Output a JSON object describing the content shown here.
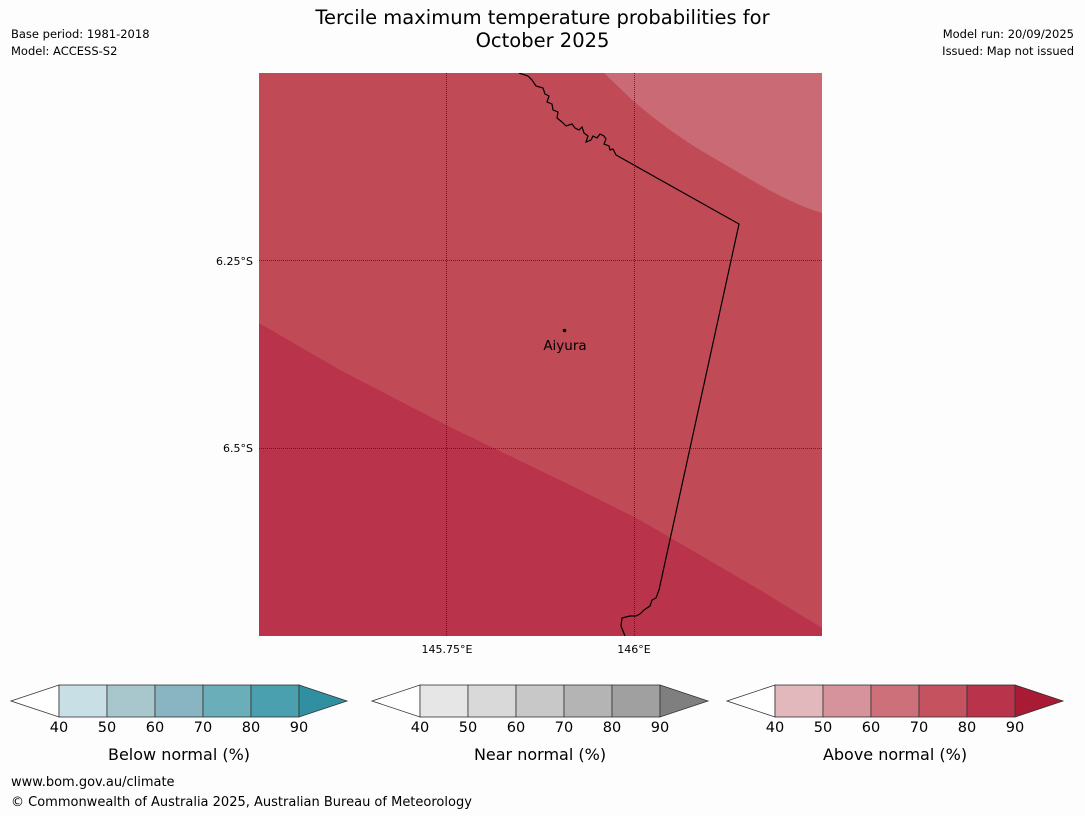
{
  "title_line1": "Tercile maximum temperature probabilities for",
  "title_line2": "October 2025",
  "meta_left": {
    "base_period": "Base period: 1981-2018",
    "model": "Model: ACCESS-S2"
  },
  "meta_right": {
    "model_run": "Model run: 20/09/2025",
    "issued": "Issued: Map not issued"
  },
  "map": {
    "place_name": "Aiyura",
    "lat_labels": [
      "6.25°S",
      "6.5°S"
    ],
    "lon_labels": [
      "145.75°E",
      "146°E"
    ],
    "colors": {
      "band_60_70": "#c96a74",
      "band_70_80": "#c04a56",
      "band_80_90": "#b9344a",
      "border": "#000000"
    }
  },
  "colorbars": [
    {
      "label": "Below normal (%)",
      "ticks": [
        "40",
        "50",
        "60",
        "70",
        "80",
        "90"
      ],
      "colors": [
        "#ffffff",
        "#c8e0e5",
        "#a8c7cd",
        "#89b5c2",
        "#6aaeb9",
        "#4aa0ae",
        "#3090a2"
      ]
    },
    {
      "label": "Near normal (%)",
      "ticks": [
        "40",
        "50",
        "60",
        "70",
        "80",
        "90"
      ],
      "colors": [
        "#ffffff",
        "#e6e6e6",
        "#d9d9d9",
        "#c8c8c8",
        "#b4b4b4",
        "#a0a0a0",
        "#7f7f7f"
      ]
    },
    {
      "label": "Above normal (%)",
      "ticks": [
        "40",
        "50",
        "60",
        "70",
        "80",
        "90"
      ],
      "colors": [
        "#ffffff",
        "#e3b8bd",
        "#d7939b",
        "#cd7079",
        "#c5525f",
        "#b9344a",
        "#a91a35"
      ]
    }
  ],
  "footer": {
    "url": "www.bom.gov.au/climate",
    "copyright": "© Commonwealth of Australia 2025, Australian Bureau of Meteorology"
  }
}
